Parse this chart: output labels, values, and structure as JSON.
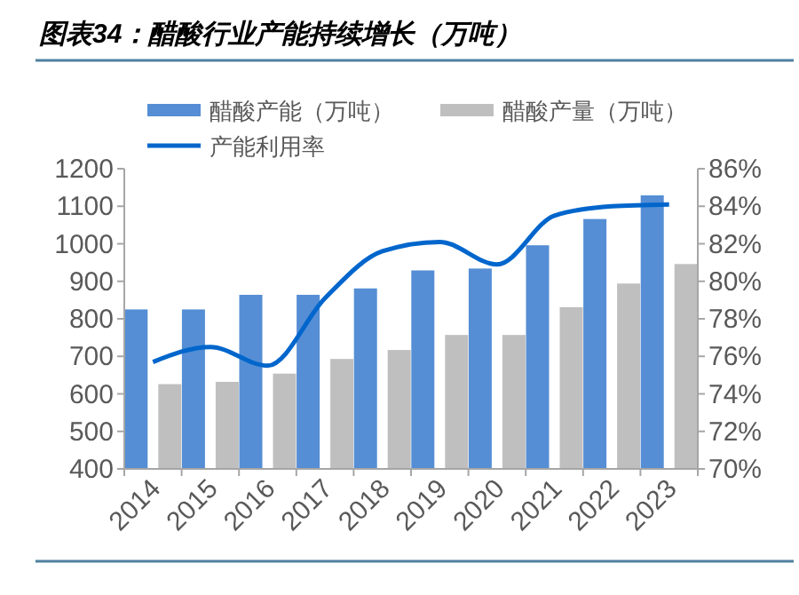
{
  "chart_data": {
    "type": "bar",
    "title": "图表34：醋酸行业产能持续增长（万吨）",
    "categories": [
      "2014",
      "2015",
      "2016",
      "2017",
      "2018",
      "2019",
      "2020",
      "2021",
      "2022",
      "2023"
    ],
    "series": [
      {
        "name": "醋酸产能（万吨）",
        "color": "#558ed5",
        "values": [
          825,
          825,
          864,
          864,
          881,
          929,
          934,
          996,
          1066,
          1129
        ]
      },
      {
        "name": "醋酸产量（万吨）",
        "color": "#bfbfbf",
        "values": [
          626,
          632,
          654,
          693,
          717,
          757,
          757,
          831,
          894,
          946
        ]
      },
      {
        "name": "产能利用率",
        "type": "line",
        "axis": "y2",
        "color": "#0066cc",
        "values": [
          75.7,
          76.5,
          75.5,
          79.1,
          81.6,
          82.1,
          80.9,
          83.5,
          84.0,
          84.1
        ]
      }
    ],
    "ylim": [
      400,
      1200
    ],
    "yticks": [
      400,
      500,
      600,
      700,
      800,
      900,
      1000,
      1100,
      1200
    ],
    "y2lim": [
      70,
      86
    ],
    "y2ticks": [
      {
        "value": 70,
        "label": "70%"
      },
      {
        "value": 72,
        "label": "72%"
      },
      {
        "value": 74,
        "label": "74%"
      },
      {
        "value": 76,
        "label": "76%"
      },
      {
        "value": 78,
        "label": "78%"
      },
      {
        "value": 80,
        "label": "80%"
      },
      {
        "value": 82,
        "label": "82%"
      },
      {
        "value": 84,
        "label": "84%"
      },
      {
        "value": 86,
        "label": "86%"
      }
    ],
    "legend": "top",
    "grid": false,
    "marker": "none",
    "line_style": "solid"
  }
}
